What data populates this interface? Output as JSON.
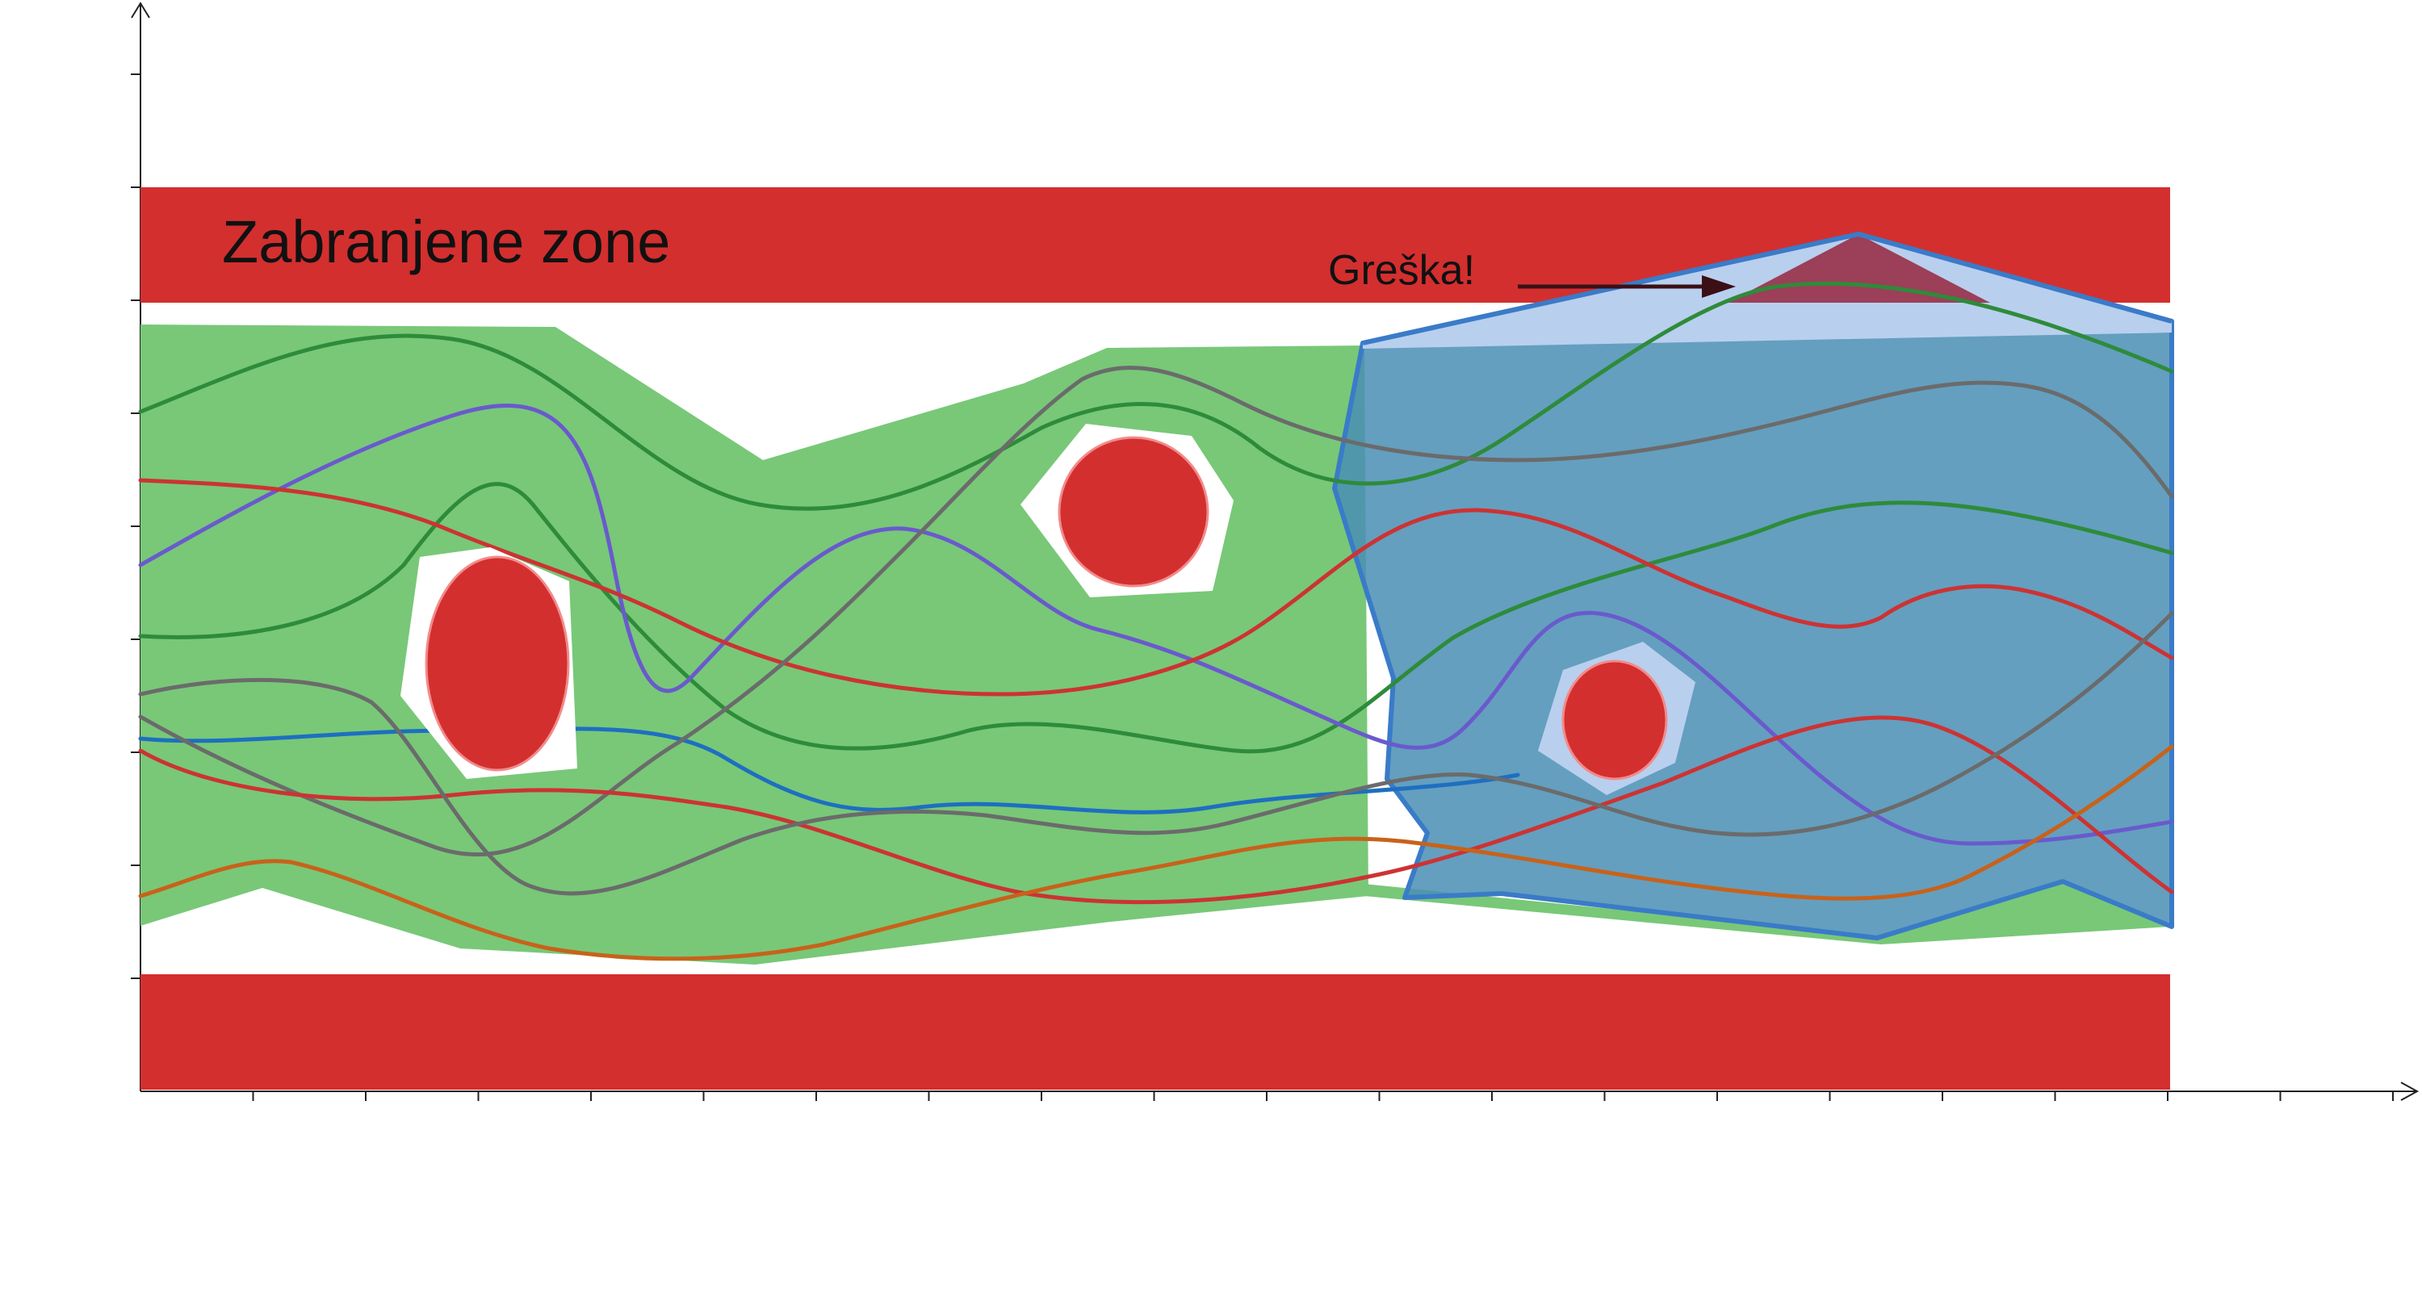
{
  "labels": {
    "forbidden_zones": "Zabranjene zone",
    "error": "Greška!"
  },
  "colors": {
    "forbidden_zone": "#d32f2f",
    "obstacle": "#d32f2f",
    "free_region": "#78c878",
    "error_region_fill": "#4b8fb4",
    "error_region_stroke": "#3a7bc8",
    "error_overlap": "#b9cfee",
    "axis": "#222222"
  },
  "trajectories": [
    {
      "color": "#2e8b3a"
    },
    {
      "color": "#2e8b3a"
    },
    {
      "color": "#2e8b3a"
    },
    {
      "color": "#1e6fc0"
    },
    {
      "color": "#1e6fc0"
    },
    {
      "color": "#6a5acd"
    },
    {
      "color": "#cc3333"
    },
    {
      "color": "#cc3333"
    },
    {
      "color": "#cc3333"
    },
    {
      "color": "#6b6b6b"
    },
    {
      "color": "#c8621a"
    }
  ]
}
